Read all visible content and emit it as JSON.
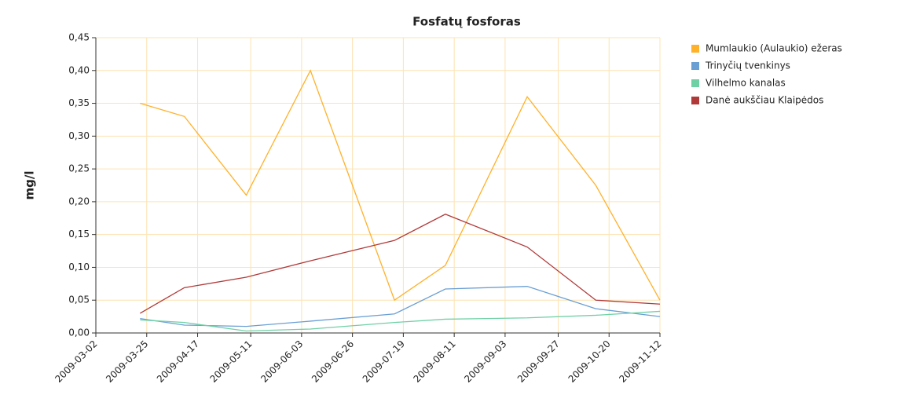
{
  "chart_data": {
    "type": "line",
    "title": "Fosfatų fosforas",
    "y_label": "mg/l",
    "x": [
      "2009-03-22",
      "2009-04-11",
      "2009-05-09",
      "2009-06-07",
      "2009-07-15",
      "2009-08-07",
      "2009-09-13",
      "2009-10-14",
      "2009-11-12"
    ],
    "series": [
      {
        "name": "Mumlaukio (Aulaukio) ežeras",
        "color": "#ffb12a",
        "values": [
          0.35,
          0.33,
          0.21,
          0.4,
          0.05,
          0.103,
          0.36,
          0.225,
          0.05
        ]
      },
      {
        "name": "Trinyčių tvenkinys",
        "color": "#6a9fd4",
        "values": [
          0.022,
          0.012,
          0.01,
          0.018,
          0.029,
          0.067,
          0.071,
          0.037,
          0.025
        ]
      },
      {
        "name": "Vilhelmo kanalas",
        "color": "#6fd0a6",
        "values": [
          0.02,
          0.016,
          0.003,
          0.006,
          0.016,
          0.021,
          0.023,
          0.027,
          0.033
        ]
      },
      {
        "name": "Danė aukščiau Klaipėdos",
        "color": "#b03a3a",
        "values": [
          0.03,
          0.069,
          0.085,
          0.11,
          0.141,
          0.181,
          0.131,
          0.05,
          0.044
        ]
      }
    ],
    "xlim": [
      "2009-03-02",
      "2009-11-12"
    ],
    "xticks": [
      "2009-03-02",
      "2009-03-25",
      "2009-04-17",
      "2009-05-11",
      "2009-06-03",
      "2009-06-26",
      "2009-07-19",
      "2009-08-11",
      "2009-09-03",
      "2009-09-27",
      "2009-10-20",
      "2009-11-12"
    ],
    "ylim": [
      0,
      0.45
    ],
    "yticks": [
      {
        "value": 0,
        "label": "0,00"
      },
      {
        "value": 0.05,
        "label": "0,05"
      },
      {
        "value": 0.1,
        "label": "0,10"
      },
      {
        "value": 0.15,
        "label": "0,15"
      },
      {
        "value": 0.2,
        "label": "0,20"
      },
      {
        "value": 0.25,
        "label": "0,25"
      },
      {
        "value": 0.3,
        "label": "0,30"
      },
      {
        "value": 0.35,
        "label": "0,35"
      },
      {
        "value": 0.4,
        "label": "0,40"
      },
      {
        "value": 0.45,
        "label": "0,45"
      }
    ],
    "grid": true,
    "legend": "right"
  }
}
